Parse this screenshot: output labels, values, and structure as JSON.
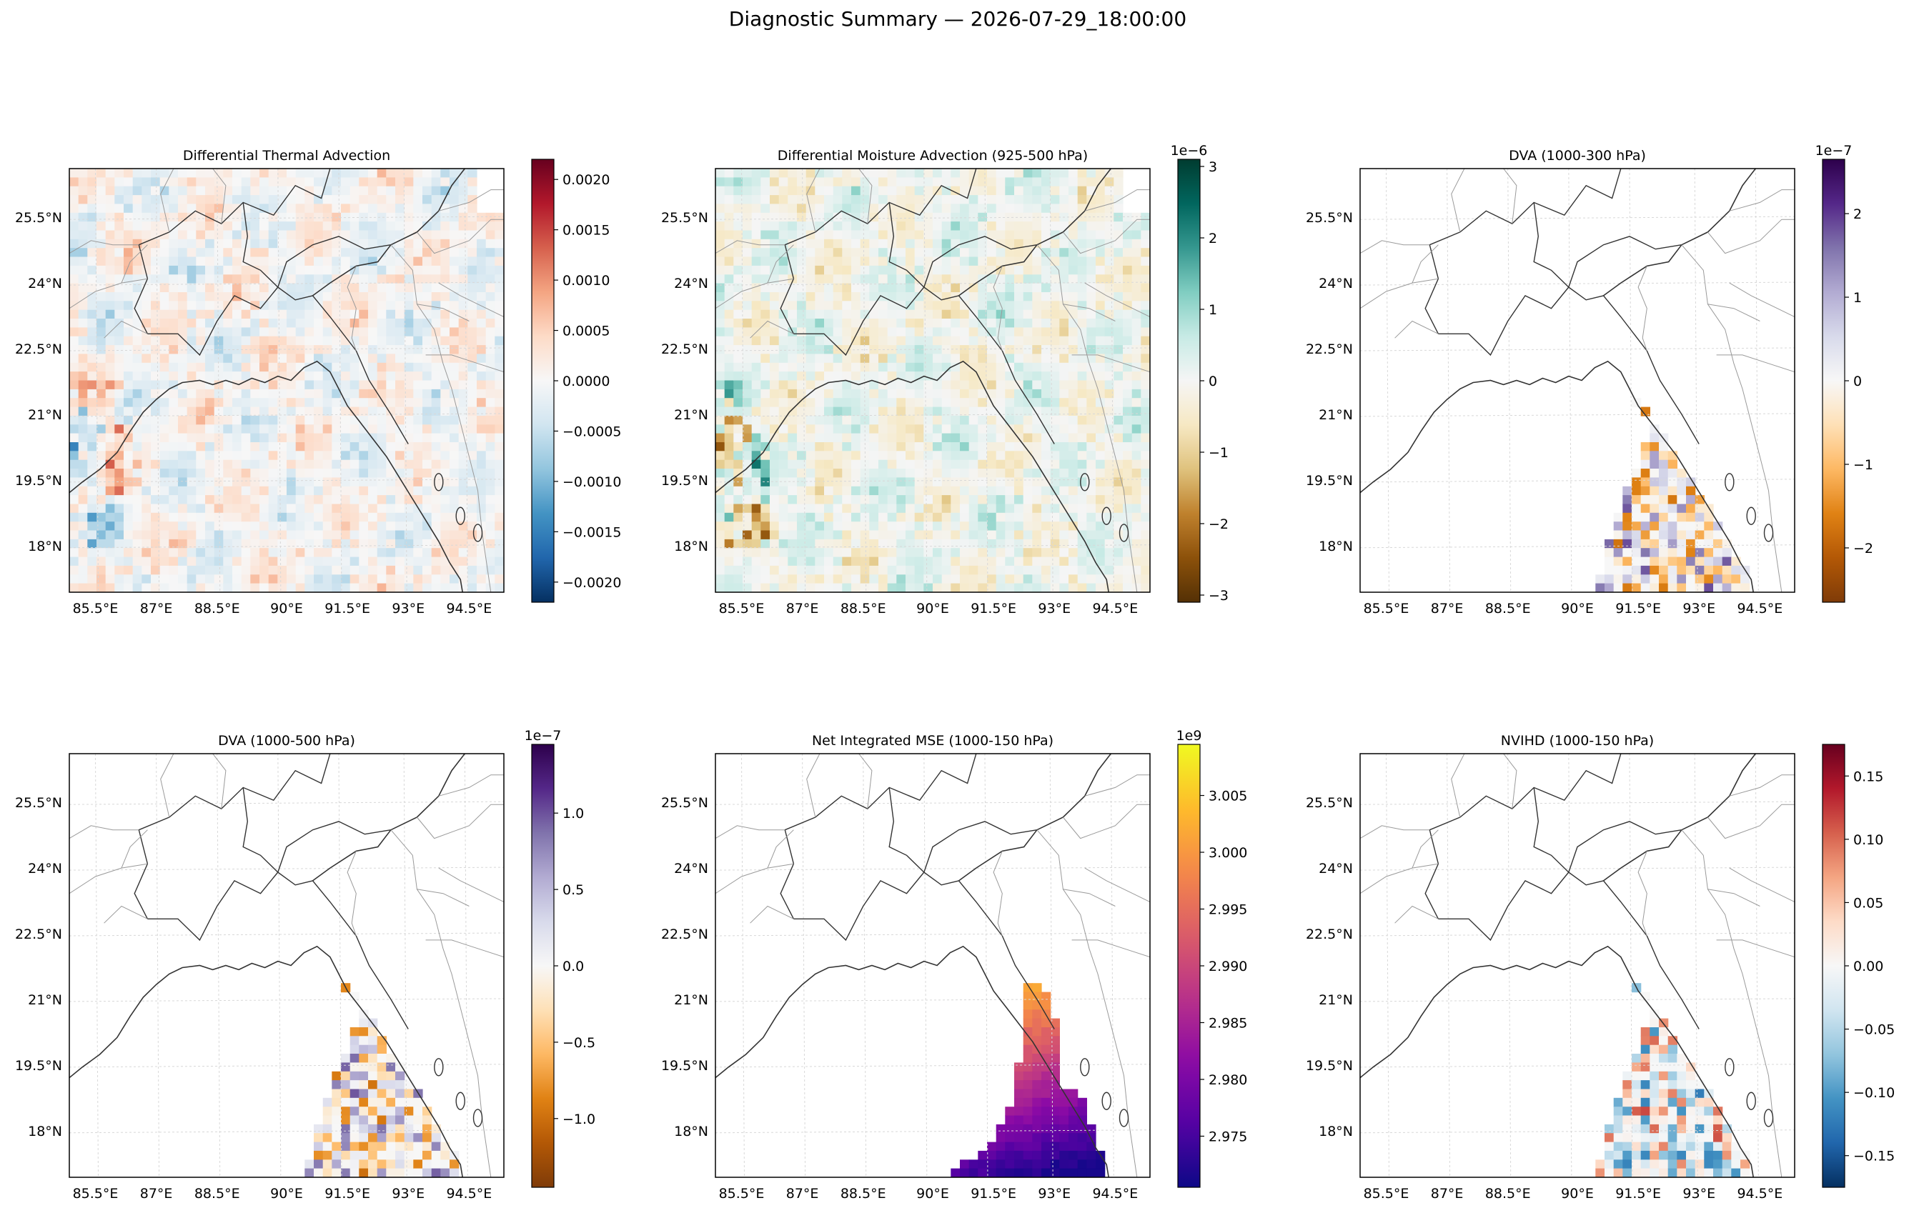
{
  "page": {
    "suptitle": "Diagnostic Summary — 2026-07-29_18:00:00"
  },
  "chart_data": [
    {
      "type": "heatmap",
      "title": "Differential Thermal Advection",
      "x_ticks": [
        "85.5°E",
        "87°E",
        "88.5°E",
        "90°E",
        "91.5°E",
        "93°E",
        "94.5°E"
      ],
      "y_ticks": [
        "25.5°N",
        "24°N",
        "22.5°N",
        "21°N",
        "19.5°N",
        "18°N"
      ],
      "colorbar": {
        "colormap": "RdBu_r",
        "range": [
          -0.0022,
          0.0022
        ],
        "offset": "",
        "ticks": [
          "0.0020",
          "0.0015",
          "0.0010",
          "0.0005",
          "0.0000",
          "−0.0005",
          "−0.0010",
          "−0.0015",
          "−0.0020"
        ],
        "tick_values": [
          0.002,
          0.0015,
          0.001,
          0.0005,
          0,
          -0.0005,
          -0.001,
          -0.0015,
          -0.002
        ]
      },
      "field": "full_domain"
    },
    {
      "type": "heatmap",
      "title": "Differential Moisture Advection (925-500 hPa)",
      "x_ticks": [
        "85.5°E",
        "87°E",
        "88.5°E",
        "90°E",
        "91.5°E",
        "93°E",
        "94.5°E"
      ],
      "y_ticks": [
        "25.5°N",
        "24°N",
        "22.5°N",
        "21°N",
        "19.5°N",
        "18°N"
      ],
      "colorbar": {
        "colormap": "BrBG",
        "range": [
          -3.1,
          3.1
        ],
        "offset": "1e−6",
        "ticks": [
          "3",
          "2",
          "1",
          "0",
          "−1",
          "−2",
          "−3"
        ],
        "tick_values": [
          3,
          2,
          1,
          0,
          -1,
          -2,
          -3
        ]
      },
      "field": "full_domain"
    },
    {
      "type": "heatmap",
      "title": "DVA (1000-300 hPa)",
      "x_ticks": [
        "85.5°E",
        "87°E",
        "88.5°E",
        "90°E",
        "91.5°E",
        "93°E",
        "94.5°E"
      ],
      "y_ticks": [
        "25.5°N",
        "24°N",
        "22.5°N",
        "21°N",
        "19.5°N",
        "18°N"
      ],
      "colorbar": {
        "colormap": "PuOr",
        "range": [
          -2.65,
          2.65
        ],
        "offset": "1e−7",
        "ticks": [
          "2",
          "1",
          "0",
          "−1",
          "−2"
        ],
        "tick_values": [
          2,
          1,
          0,
          -1,
          -2
        ]
      },
      "field": "bay_wedge"
    },
    {
      "type": "heatmap",
      "title": "DVA (1000-500 hPa)",
      "x_ticks": [
        "85.5°E",
        "87°E",
        "88.5°E",
        "90°E",
        "91.5°E",
        "93°E",
        "94.5°E"
      ],
      "y_ticks": [
        "25.5°N",
        "24°N",
        "22.5°N",
        "21°N",
        "19.5°N",
        "18°N"
      ],
      "colorbar": {
        "colormap": "PuOr",
        "range": [
          -1.45,
          1.45
        ],
        "offset": "1e−7",
        "ticks": [
          "1.0",
          "0.5",
          "0.0",
          "−0.5",
          "−1.0"
        ],
        "tick_values": [
          1,
          0.5,
          0,
          -0.5,
          -1
        ]
      },
      "field": "bay_wedge"
    },
    {
      "type": "heatmap",
      "title": "Net Integrated MSE (1000-150 hPa)",
      "x_ticks": [
        "85.5°E",
        "87°E",
        "88.5°E",
        "90°E",
        "91.5°E",
        "93°E",
        "94.5°E"
      ],
      "y_ticks": [
        "25.5°N",
        "24°N",
        "22.5°N",
        "21°N",
        "19.5°N",
        "18°N"
      ],
      "colorbar": {
        "colormap": "plasma",
        "range": [
          2.9705,
          3.0095
        ],
        "offset": "1e9",
        "ticks": [
          "3.005",
          "3.000",
          "2.995",
          "2.990",
          "2.985",
          "2.980",
          "2.975"
        ],
        "tick_values": [
          3.005,
          3.0,
          2.995,
          2.99,
          2.985,
          2.98,
          2.975
        ]
      },
      "field": "bay_wedge"
    },
    {
      "type": "heatmap",
      "title": "NVIHD (1000-150 hPa)",
      "x_ticks": [
        "85.5°E",
        "87°E",
        "88.5°E",
        "90°E",
        "91.5°E",
        "93°E",
        "94.5°E"
      ],
      "y_ticks": [
        "25.5°N",
        "24°N",
        "22.5°N",
        "21°N",
        "19.5°N",
        "18°N"
      ],
      "colorbar": {
        "colormap": "RdBu_r",
        "range": [
          -0.175,
          0.175
        ],
        "offset": "",
        "ticks": [
          "0.15",
          "0.10",
          "0.05",
          "0.00",
          "−0.05",
          "−0.10",
          "−0.15"
        ],
        "tick_values": [
          0.15,
          0.1,
          0.05,
          0,
          -0.05,
          -0.1,
          -0.15
        ]
      },
      "field": "bay_wedge"
    }
  ]
}
